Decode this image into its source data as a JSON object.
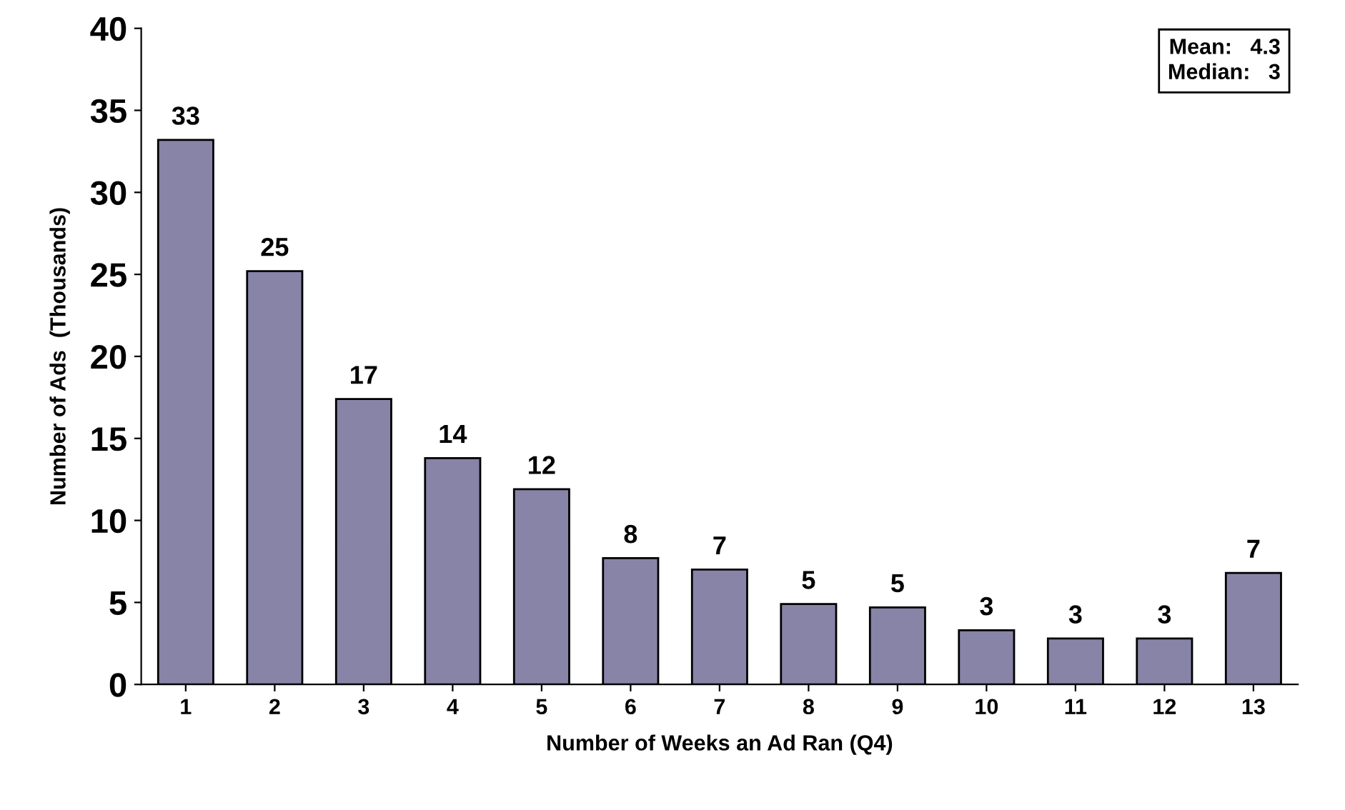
{
  "chart_data": {
    "type": "bar",
    "xlabel": "Number of Weeks an Ad Ran (Q4)",
    "ylabel": "Number of Ads  (Thousands)",
    "categories": [
      "1",
      "2",
      "3",
      "4",
      "5",
      "6",
      "7",
      "8",
      "9",
      "10",
      "11",
      "12",
      "13"
    ],
    "values": [
      33.2,
      25.2,
      17.4,
      13.8,
      11.9,
      7.7,
      7.0,
      4.9,
      4.7,
      3.3,
      2.8,
      2.8,
      6.8
    ],
    "value_labels": [
      "33",
      "25",
      "17",
      "14",
      "12",
      "8",
      "7",
      "5",
      "5",
      "3",
      "3",
      "3",
      "7"
    ],
    "color": "#8884a8",
    "ylim": [
      0,
      40
    ],
    "yticks": [
      0,
      5,
      10,
      15,
      20,
      25,
      30,
      35,
      40
    ],
    "grid": false,
    "legend": false,
    "annotations": [
      "Mean:   4.3\nMedian:   3"
    ]
  }
}
